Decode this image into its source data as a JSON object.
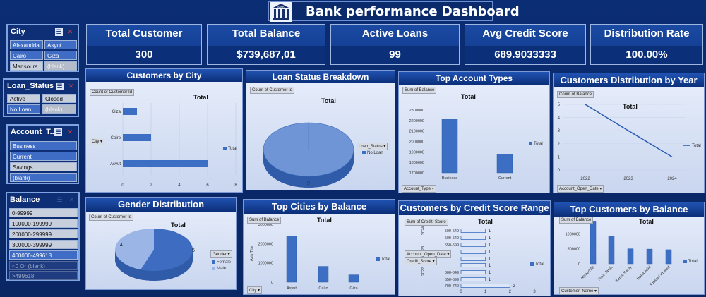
{
  "header": {
    "title": "Bank performance Dashboard",
    "logo_text": "BANK"
  },
  "slicers": {
    "city": {
      "title": "City",
      "items": [
        "Alexandria",
        "Asyut",
        "Cairo",
        "Giza",
        "Mansoura",
        "(blank)"
      ]
    },
    "loan_status": {
      "title": "Loan_Status",
      "items": [
        "Active",
        "Closed",
        "No Loan",
        "(blank)"
      ]
    },
    "account_type": {
      "title": "Account_T...",
      "items": [
        "Business",
        "Current",
        "Savings",
        "(blank)"
      ]
    },
    "balance": {
      "title": "Balance",
      "items": [
        "0-99999",
        "100000-199999",
        "200000-299999",
        "300000-399999",
        "400000-499618",
        "<0 Or (blank)",
        ">499618"
      ]
    }
  },
  "kpis": [
    {
      "label": "Total Customer",
      "value": "300"
    },
    {
      "label": "Total Balance",
      "value": "$739,687,01"
    },
    {
      "label": "Active Loans",
      "value": "99"
    },
    {
      "label": "Avg Credit Score",
      "value": "689.9033333"
    },
    {
      "label": "Distribution Rate",
      "value": "100.00%"
    }
  ],
  "colors": {
    "bar": "#3c6fc3",
    "header": "#0b2f78",
    "accent": "#2153b3"
  },
  "common": {
    "total": "Total"
  },
  "chart_data": [
    {
      "type": "bar",
      "id": "customers_by_city",
      "title": "Customers by City",
      "field": "Count of Customer Id",
      "axis_field": "City",
      "categories": [
        "Asyut",
        "Cairo",
        "Giza"
      ],
      "values": [
        6,
        2,
        1
      ],
      "xlim": [
        0,
        8
      ],
      "xticks": [
        "0",
        "2",
        "4",
        "6",
        "8"
      ],
      "legend": [
        "Total"
      ]
    },
    {
      "type": "pie",
      "id": "loan_status",
      "title": "Loan Status Breakdown",
      "field": "Count of Customer Id",
      "axis_field": "Loan_Status",
      "slices": [
        {
          "label": "No Loan",
          "value": 9
        }
      ],
      "legend": [
        "No Loan"
      ]
    },
    {
      "type": "bar",
      "id": "top_account_types",
      "title": "Top Account Types",
      "field": "Sum of Balance",
      "axis_field": "Account_Type",
      "categories": [
        "Business",
        "Current"
      ],
      "values": [
        2210000,
        1880000
      ],
      "ylim": [
        1700000,
        2300000
      ],
      "yticks": [
        "2300000",
        "2200000",
        "2100000",
        "2000000",
        "1900000",
        "1800000",
        "1700000"
      ],
      "legend": [
        "Total"
      ]
    },
    {
      "type": "line",
      "id": "customers_by_year",
      "title": "Customers Distribution by Year",
      "field": "Count of Balance",
      "axis_field": "Account_Open_Date",
      "x": [
        "2022",
        "2023",
        "2024"
      ],
      "values": [
        5,
        3,
        1
      ],
      "ylim": [
        0,
        5
      ],
      "yticks": [
        "5",
        "4",
        "3",
        "2",
        "1",
        "0"
      ],
      "legend": [
        "Total"
      ]
    },
    {
      "type": "pie",
      "id": "gender_distribution",
      "title": "Gender Distribution",
      "field": "Count of Customer Id",
      "axis_field": "Gender",
      "slices": [
        {
          "label": "Female",
          "value": 5
        },
        {
          "label": "Male",
          "value": 4
        }
      ],
      "legend": [
        "Female",
        "Male"
      ]
    },
    {
      "type": "bar",
      "id": "top_cities_balance",
      "title": "Top Cities by Balance",
      "field": "Sum of Balance",
      "axis_field": "City",
      "ylabel": "Axis Title",
      "categories": [
        "Asyut",
        "Cairo",
        "Giza"
      ],
      "values": [
        2400000,
        820000,
        380000
      ],
      "ylim": [
        0,
        3000000
      ],
      "yticks": [
        "3000000",
        "2000000",
        "1000000",
        "0"
      ],
      "legend": [
        "Total"
      ]
    },
    {
      "type": "bar",
      "id": "credit_score_range",
      "title": "Customers by Credit Score Range",
      "field": "Sum of Credit_Score",
      "axis_fields": [
        "Account_Open_Date",
        "Credit_Score"
      ],
      "groups": [
        "2024",
        "2023",
        "2022"
      ],
      "categories": [
        "500-549",
        "500-549",
        "550-599",
        "",
        "",
        "",
        "600-649",
        "650-699",
        "700-749"
      ],
      "values": [
        1,
        1,
        1,
        1,
        1,
        1,
        1,
        1,
        2
      ],
      "xlim": [
        0,
        3
      ],
      "xticks": [
        "0",
        "1",
        "2",
        "3"
      ],
      "legend": [
        "Total"
      ]
    },
    {
      "type": "bar",
      "id": "top_customers_balance",
      "title": "Top Customers by Balance",
      "field": "Sum of Balance",
      "axis_field": "Customer_Name",
      "categories": [
        "Ahmed Ali",
        "Nour Tarek",
        "Karim Samy",
        "Hana Adel",
        "Youssef Khaled"
      ],
      "values": [
        1420000,
        920000,
        500000,
        490000,
        470000
      ],
      "ylim": [
        0,
        1500000
      ],
      "yticks": [
        "1000000",
        "500000",
        "0"
      ],
      "legend": [
        "Total"
      ]
    }
  ]
}
